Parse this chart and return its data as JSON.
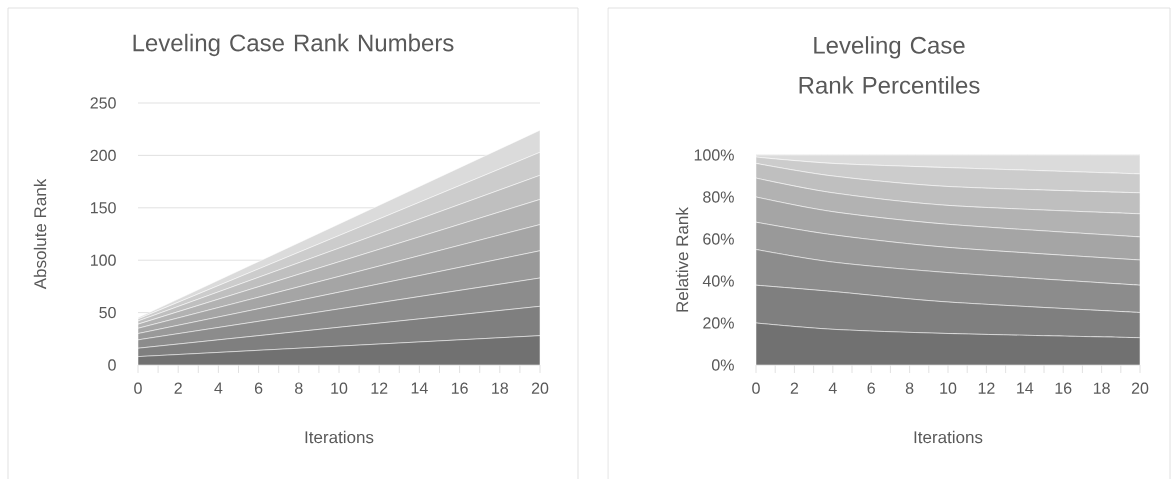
{
  "chart_data": [
    {
      "type": "area",
      "stacked": true,
      "title": "Leveling Case Rank Numbers",
      "xlabel": "Iterations",
      "ylabel": "Absolute Rank",
      "grid": "y",
      "x": [
        0,
        20
      ],
      "xlim": [
        0,
        20
      ],
      "xticks": [
        0,
        {
          "value": 1,
          "label": null
        },
        2,
        {
          "value": 3,
          "label": null
        },
        4,
        {
          "value": 5,
          "label": null
        },
        6,
        {
          "value": 7,
          "label": null
        },
        8,
        {
          "value": 9,
          "label": null
        },
        10,
        {
          "value": 11,
          "label": null
        },
        12,
        {
          "value": 13,
          "label": null
        },
        14,
        {
          "value": 15,
          "label": null
        },
        16,
        {
          "value": 17,
          "label": null
        },
        18,
        {
          "value": 19,
          "label": null
        },
        20
      ],
      "ylim": [
        0,
        250
      ],
      "yticks": [
        0,
        50,
        100,
        150,
        200,
        250
      ],
      "series": [
        {
          "color": "#717171",
          "values": [
            8,
            28
          ]
        },
        {
          "color": "#7f7f7f",
          "values": [
            8,
            28
          ]
        },
        {
          "color": "#8c8c8c",
          "values": [
            8,
            27
          ]
        },
        {
          "color": "#999999",
          "values": [
            6,
            26
          ]
        },
        {
          "color": "#a5a5a5",
          "values": [
            5,
            25
          ]
        },
        {
          "color": "#b2b2b2",
          "values": [
            4,
            24
          ]
        },
        {
          "color": "#bfbfbf",
          "values": [
            3,
            23
          ]
        },
        {
          "color": "#cccccc",
          "values": [
            2,
            22
          ]
        },
        {
          "color": "#dbdbdb",
          "values": [
            1,
            21
          ]
        }
      ]
    },
    {
      "type": "area",
      "stacked": true,
      "title": "Leveling Case Rank Percentiles",
      "xlabel": "Iterations",
      "ylabel": "Relative Rank",
      "grid": "y",
      "x": [
        0,
        4,
        10,
        20
      ],
      "xlim": [
        0,
        20
      ],
      "xticks": [
        0,
        {
          "value": 1,
          "label": null
        },
        2,
        {
          "value": 3,
          "label": null
        },
        4,
        {
          "value": 5,
          "label": null
        },
        6,
        {
          "value": 7,
          "label": null
        },
        8,
        {
          "value": 9,
          "label": null
        },
        10,
        {
          "value": 11,
          "label": null
        },
        12,
        {
          "value": 13,
          "label": null
        },
        14,
        {
          "value": 15,
          "label": null
        },
        16,
        {
          "value": 17,
          "label": null
        },
        18,
        {
          "value": 19,
          "label": null
        },
        20
      ],
      "ylim": [
        0,
        100
      ],
      "yticks": [
        {
          "value": 0,
          "label": "0%"
        },
        {
          "value": 20,
          "label": "20%"
        },
        {
          "value": 40,
          "label": "40%"
        },
        {
          "value": 60,
          "label": "60%"
        },
        {
          "value": 80,
          "label": "80%"
        },
        {
          "value": 100,
          "label": "100%"
        }
      ],
      "series": [
        {
          "color": "#717171",
          "values": [
            20,
            17,
            15,
            13
          ]
        },
        {
          "color": "#7f7f7f",
          "values": [
            18,
            18,
            15,
            12
          ]
        },
        {
          "color": "#8c8c8c",
          "values": [
            17,
            14,
            14,
            13
          ]
        },
        {
          "color": "#999999",
          "values": [
            13,
            13,
            12,
            12
          ]
        },
        {
          "color": "#a5a5a5",
          "values": [
            12,
            11,
            11,
            11
          ]
        },
        {
          "color": "#b2b2b2",
          "values": [
            9,
            9,
            9,
            11
          ]
        },
        {
          "color": "#bfbfbf",
          "values": [
            7,
            8,
            9,
            10
          ]
        },
        {
          "color": "#cccccc",
          "values": [
            3,
            6,
            9,
            9
          ]
        },
        {
          "color": "#dbdbdb",
          "values": [
            1,
            4,
            6,
            9
          ]
        }
      ]
    }
  ]
}
